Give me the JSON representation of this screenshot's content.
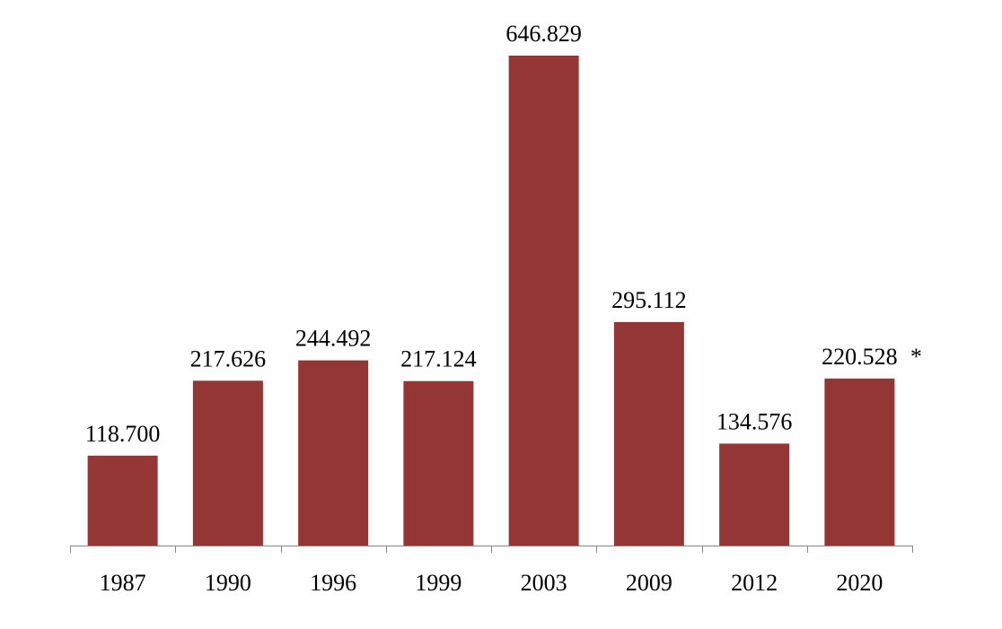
{
  "chart_data": {
    "type": "bar",
    "categories": [
      "1987",
      "1990",
      "1996",
      "1999",
      "2003",
      "2009",
      "2012",
      "2020"
    ],
    "values": [
      118.7,
      217.626,
      244.492,
      217.124,
      646.829,
      295.112,
      134.576,
      220.528
    ],
    "data_labels": [
      "118.700",
      "217.626",
      "244.492",
      "217.124",
      "646.829",
      "295.112",
      "134.576",
      "220.528"
    ],
    "annotations": [
      {
        "category": "2020",
        "text": "*"
      }
    ],
    "title": "",
    "xlabel": "",
    "ylabel": "",
    "ylim": [
      0,
      646.829
    ],
    "grid": false,
    "legend": "none",
    "colors": {
      "bar": "#943634",
      "axis": "#868686",
      "text": "#000000"
    }
  }
}
